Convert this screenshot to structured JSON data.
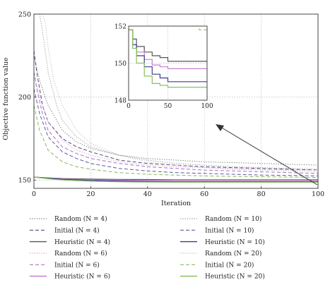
{
  "chart_data": {
    "type": "line",
    "xlabel": "Iteration",
    "ylabel": "Objective function value",
    "xlim": [
      0,
      100
    ],
    "ylim": [
      145,
      250
    ],
    "xticks": [
      0,
      20,
      40,
      60,
      80,
      100
    ],
    "yticks": [
      150,
      200,
      250
    ],
    "grid": true,
    "legend_position": "bottom",
    "inset": {
      "xlim": [
        0,
        100
      ],
      "ylim": [
        148,
        152
      ],
      "xticks": [
        0,
        50,
        100
      ],
      "yticks": [
        148,
        150,
        152
      ],
      "grid": true
    },
    "series": [
      {
        "name": "Random (N = 4)",
        "color": "#7a7a7a",
        "style": "dotted",
        "x": [
          0,
          2,
          5,
          10,
          15,
          20,
          30,
          40,
          50,
          60,
          70,
          80,
          90,
          100
        ],
        "y": [
          225,
          210,
          195,
          180,
          173,
          169,
          165,
          163,
          162,
          161,
          160.5,
          160,
          159.5,
          159
        ]
      },
      {
        "name": "Initial (N = 4)",
        "color": "#4a4a7a",
        "style": "dashed",
        "x": [
          0,
          1,
          3,
          5,
          10,
          15,
          20,
          30,
          40,
          50,
          60,
          70,
          80,
          90,
          100
        ],
        "y": [
          228,
          215,
          195,
          185,
          175,
          170,
          167,
          162,
          160,
          159,
          158,
          157.5,
          157,
          156.5,
          156
        ]
      },
      {
        "name": "Heuristic (N = 4)",
        "color": "#555555",
        "style": "solid",
        "x": [
          0,
          5,
          10,
          20,
          30,
          40,
          50,
          60,
          70,
          80,
          90,
          100
        ],
        "y": [
          151.8,
          151.3,
          150.9,
          150.6,
          150.4,
          150.3,
          150.1,
          150.1,
          150.1,
          150.1,
          150.1,
          150.1
        ]
      },
      {
        "name": "Random (N = 6)",
        "color": "#d8a0d8",
        "style": "dotted",
        "x": [
          0,
          2,
          5,
          10,
          15,
          20,
          30,
          40,
          50,
          60,
          70,
          80,
          90,
          100
        ],
        "y": [
          215,
          200,
          185,
          174,
          168,
          165,
          161,
          159,
          158,
          157.5,
          157,
          156.5,
          156,
          156
        ]
      },
      {
        "name": "Initial (N = 6)",
        "color": "#b070c0",
        "style": "dashed",
        "x": [
          0,
          1,
          3,
          5,
          10,
          15,
          20,
          30,
          40,
          50,
          60,
          70,
          80,
          90,
          100
        ],
        "y": [
          215,
          205,
          190,
          180,
          170,
          166,
          163,
          160,
          158,
          157,
          156,
          155.5,
          155,
          154.5,
          154
        ]
      },
      {
        "name": "Heuristic (N = 6)",
        "color": "#c080d0",
        "style": "solid",
        "x": [
          0,
          5,
          10,
          20,
          30,
          40,
          50,
          60,
          70,
          80,
          90,
          100
        ],
        "y": [
          151.8,
          151.0,
          150.6,
          150.2,
          149.9,
          149.8,
          149.7,
          149.7,
          149.7,
          149.7,
          149.7,
          149.7
        ]
      },
      {
        "name": "Random (N = 10)",
        "color": "#999999",
        "style": "dotted",
        "x": [
          2,
          3,
          5,
          8,
          10,
          15,
          20,
          30,
          40,
          50,
          60,
          70,
          80,
          90,
          100
        ],
        "y": [
          250,
          240,
          215,
          195,
          186,
          176,
          170,
          165,
          162,
          160,
          159,
          158,
          157.5,
          157,
          156.5
        ]
      },
      {
        "name": "Initial (N = 10)",
        "color": "#5a5aa0",
        "style": "dashed",
        "x": [
          0,
          2,
          5,
          10,
          15,
          20,
          30,
          40,
          50,
          60,
          70,
          80,
          90,
          100
        ],
        "y": [
          205,
          190,
          176,
          167,
          163,
          160,
          157,
          155.5,
          154.5,
          154,
          153.5,
          153,
          152.8,
          152.5
        ]
      },
      {
        "name": "Heuristic (N = 10)",
        "color": "#3c3c90",
        "style": "solid",
        "x": [
          0,
          5,
          10,
          20,
          30,
          40,
          50,
          60,
          70,
          80,
          90,
          100
        ],
        "y": [
          151.8,
          151.0,
          150.4,
          149.8,
          149.4,
          149.2,
          149.0,
          149.0,
          149.0,
          149.0,
          149.0,
          149.0
        ]
      },
      {
        "name": "Random (N = 20)",
        "color": "#c0c0c0",
        "style": "dotted",
        "x": [
          3,
          4,
          5,
          7,
          10,
          15,
          20,
          30,
          40,
          50,
          60,
          70,
          80,
          90,
          100
        ],
        "y": [
          250,
          245,
          230,
          210,
          195,
          180,
          172,
          165,
          161,
          159,
          157.5,
          156.5,
          156,
          155.5,
          155
        ]
      },
      {
        "name": "Initial (N = 20)",
        "color": "#8ab85a",
        "style": "dashed",
        "x": [
          0,
          2,
          5,
          10,
          15,
          20,
          30,
          40,
          50,
          60,
          70,
          80,
          90,
          100
        ],
        "y": [
          195,
          180,
          168,
          161,
          158,
          156.5,
          154.5,
          153.5,
          153,
          152.5,
          152.2,
          152,
          151.8,
          151.6
        ]
      },
      {
        "name": "Heuristic (N = 20)",
        "color": "#8ac060",
        "style": "solid",
        "x": [
          0,
          5,
          10,
          20,
          30,
          40,
          50,
          60,
          70,
          80,
          90,
          100
        ],
        "y": [
          151.8,
          150.8,
          150.0,
          149.3,
          148.9,
          148.8,
          148.7,
          148.7,
          148.7,
          148.7,
          148.7,
          148.7
        ]
      }
    ]
  }
}
